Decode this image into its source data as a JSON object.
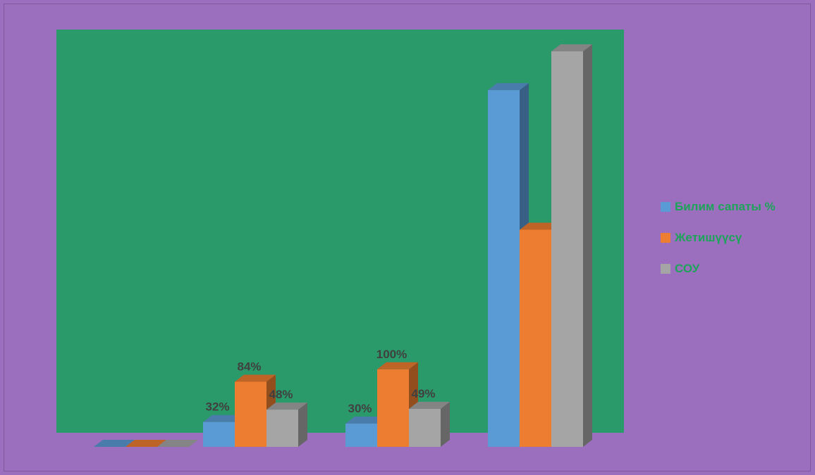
{
  "chart_data": {
    "type": "bar",
    "categories": [
      "",
      "",
      "",
      ""
    ],
    "series": [
      {
        "name": "Билим сапаты %",
        "color": "#5b9bd5",
        "values": [
          0,
          32,
          30,
          460
        ],
        "labels": [
          "",
          "32%",
          "30%",
          ""
        ]
      },
      {
        "name": "Жетишүүсү",
        "color": "#ed7d31",
        "values": [
          0,
          84,
          100,
          280
        ],
        "labels": [
          "",
          "84%",
          "100%",
          ""
        ]
      },
      {
        "name": "СОУ",
        "color": "#a5a5a5",
        "values": [
          0,
          48,
          49,
          510
        ],
        "labels": [
          "",
          "48%",
          "49%",
          ""
        ]
      }
    ],
    "title": "",
    "xlabel": "",
    "ylabel": "",
    "ylim": [
      0,
      520
    ],
    "grid": false,
    "legend": "right",
    "plot_background": "#2a9a6a",
    "page_background": "#9b6fbd"
  }
}
